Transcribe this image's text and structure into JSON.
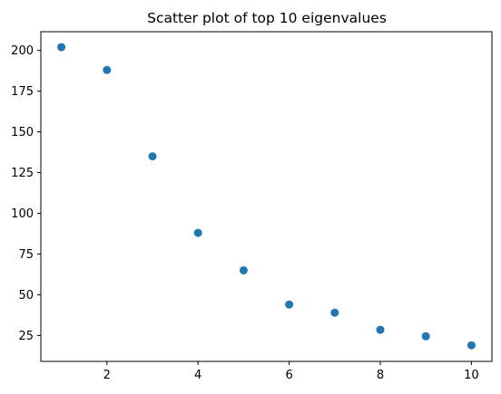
{
  "chart_data": {
    "type": "scatter",
    "title": "Scatter plot of top 10 eigenvalues",
    "xlabel": "",
    "ylabel": "",
    "x": [
      1,
      2,
      3,
      4,
      5,
      6,
      7,
      8,
      9,
      10
    ],
    "y": [
      202,
      188,
      135,
      88,
      65,
      44,
      39,
      28.5,
      24.5,
      19
    ],
    "xlim": [
      0.55,
      10.45
    ],
    "ylim": [
      9.1,
      211.5
    ],
    "xticks": [
      2,
      4,
      6,
      8,
      10
    ],
    "yticks": [
      25,
      50,
      75,
      100,
      125,
      150,
      175,
      200
    ],
    "grid": false,
    "marker_color": "#1f77b4"
  }
}
